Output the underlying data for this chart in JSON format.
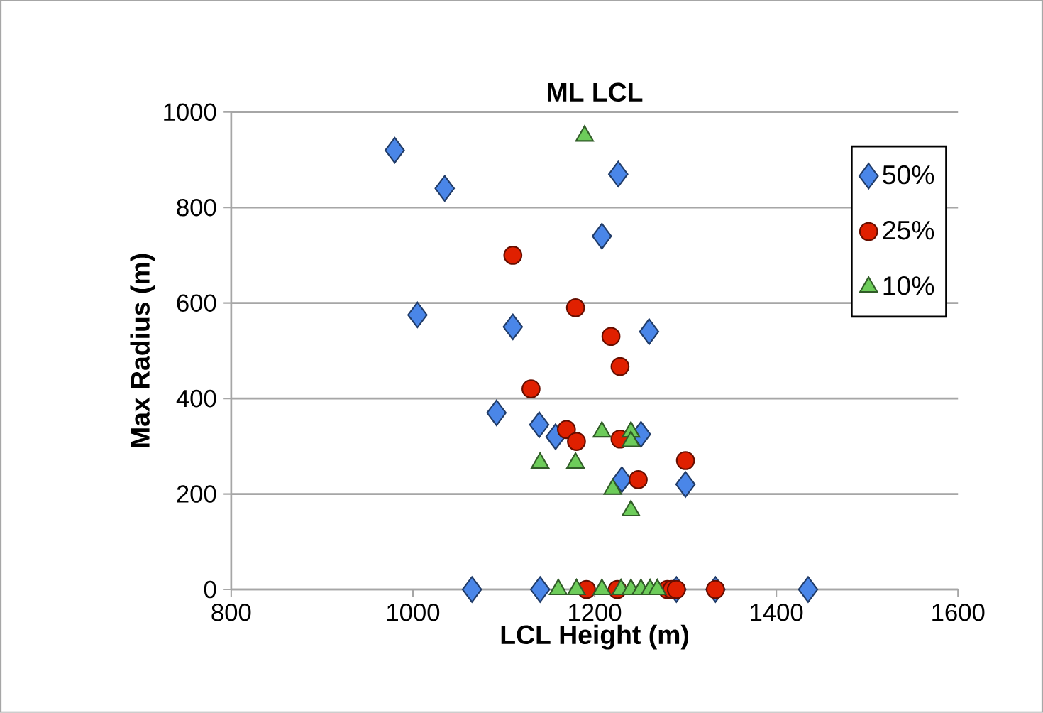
{
  "chart_data": {
    "type": "scatter",
    "title": "ML LCL",
    "xlabel": "LCL Height (m)",
    "ylabel": "Max Radius (m)",
    "xlim": [
      800,
      1600
    ],
    "xticks": [
      800,
      1000,
      1200,
      1400,
      1600
    ],
    "ylim": [
      0,
      1000
    ],
    "yticks": [
      0,
      200,
      400,
      600,
      800,
      1000
    ],
    "grid": "y",
    "legend": "top right",
    "series": [
      {
        "name": "50%",
        "color": "#4a86e8",
        "marker": "diamond",
        "x": [
          980,
          1035,
          1226,
          1208,
          1005,
          1110,
          1260,
          1092,
          1139,
          1157,
          1251,
          1230,
          1300,
          1065,
          1140,
          1290,
          1333,
          1435
        ],
        "values": [
          920,
          840,
          870,
          740,
          575,
          550,
          540,
          370,
          345,
          320,
          325,
          230,
          220,
          0,
          0,
          0,
          0,
          0
        ]
      },
      {
        "name": "25%",
        "color": "#e02000",
        "marker": "circle",
        "x": [
          1110,
          1179,
          1218,
          1228,
          1130,
          1169,
          1180,
          1228,
          1300,
          1248,
          1191,
          1225,
          1280,
          1285,
          1290,
          1333
        ],
        "values": [
          700,
          590,
          530,
          467,
          420,
          335,
          310,
          315,
          270,
          230,
          0,
          0,
          0,
          0,
          0,
          0
        ]
      },
      {
        "name": "10%",
        "color": "#6dcc5a",
        "marker": "triangle",
        "x": [
          1189,
          1208,
          1240,
          1240,
          1140,
          1179,
          1220,
          1240,
          1160,
          1180,
          1208,
          1229,
          1240,
          1251,
          1261,
          1269
        ],
        "values": [
          950,
          330,
          330,
          310,
          265,
          265,
          210,
          165,
          0,
          0,
          0,
          0,
          0,
          0,
          0,
          0
        ]
      }
    ]
  }
}
